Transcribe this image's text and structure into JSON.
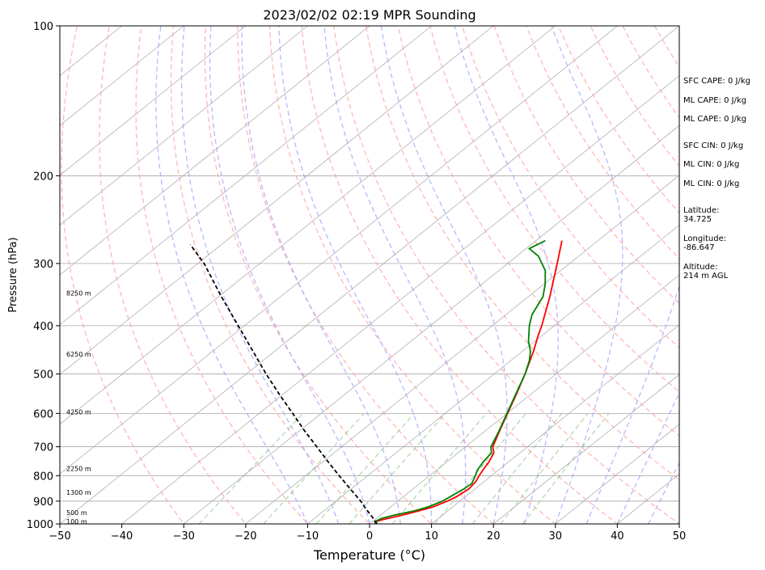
{
  "chart_data": {
    "type": "line",
    "title": "2023/02/02 02:19 MPR Sounding",
    "xlabel": "Temperature (°C)",
    "ylabel": "Pressure (hPa)",
    "xlim": [
      -50,
      50
    ],
    "ylim": [
      1000,
      100
    ],
    "y_scale": "log",
    "skew": "skew-T",
    "x_ticks": [
      "−50",
      "−40",
      "−30",
      "−20",
      "−10",
      "0",
      "10",
      "20",
      "30",
      "40",
      "50"
    ],
    "y_ticks": [
      1000,
      900,
      800,
      700,
      600,
      500,
      400,
      300,
      200,
      100
    ],
    "height_labels": [
      {
        "text": "100 m",
        "p": 993
      },
      {
        "text": "500 m",
        "p": 953
      },
      {
        "text": "1300 m",
        "p": 868
      },
      {
        "text": "2250 m",
        "p": 777
      },
      {
        "text": "4250 m",
        "p": 598
      },
      {
        "text": "6250 m",
        "p": 458
      },
      {
        "text": "8250 m",
        "p": 345
      }
    ],
    "series": [
      {
        "role": "temperature",
        "color": "#ff0000",
        "points": [
          [
            1000,
            1.2
          ],
          [
            990,
            0.5
          ],
          [
            980,
            1.3
          ],
          [
            960,
            3.5
          ],
          [
            940,
            5.5
          ],
          [
            925,
            6.8
          ],
          [
            900,
            8.0
          ],
          [
            880,
            8.6
          ],
          [
            850,
            9.0
          ],
          [
            820,
            8.6
          ],
          [
            800,
            8.0
          ],
          [
            780,
            7.5
          ],
          [
            750,
            6.8
          ],
          [
            720,
            5.8
          ],
          [
            700,
            4.4
          ],
          [
            650,
            2.3
          ],
          [
            600,
            0.1
          ],
          [
            550,
            -2.3
          ],
          [
            500,
            -5.0
          ],
          [
            450,
            -8.2
          ],
          [
            420,
            -10.5
          ],
          [
            400,
            -12.0
          ],
          [
            350,
            -16.5
          ],
          [
            300,
            -22.0
          ],
          [
            270,
            -25.8
          ]
        ]
      },
      {
        "role": "dewpoint",
        "color": "#008000",
        "points": [
          [
            1000,
            1.0
          ],
          [
            990,
            0.4
          ],
          [
            975,
            0.8
          ],
          [
            960,
            2.2
          ],
          [
            940,
            4.8
          ],
          [
            925,
            6.0
          ],
          [
            900,
            7.2
          ],
          [
            880,
            7.6
          ],
          [
            850,
            8.2
          ],
          [
            830,
            8.4
          ],
          [
            800,
            7.4
          ],
          [
            780,
            6.6
          ],
          [
            750,
            5.9
          ],
          [
            720,
            5.4
          ],
          [
            700,
            4.1
          ],
          [
            650,
            2.2
          ],
          [
            600,
            0.0
          ],
          [
            550,
            -2.4
          ],
          [
            500,
            -5.0
          ],
          [
            470,
            -7.0
          ],
          [
            450,
            -8.7
          ],
          [
            430,
            -11.0
          ],
          [
            400,
            -14.0
          ],
          [
            380,
            -15.8
          ],
          [
            350,
            -17.6
          ],
          [
            330,
            -19.8
          ],
          [
            310,
            -22.5
          ],
          [
            290,
            -26.5
          ],
          [
            280,
            -29.5
          ],
          [
            270,
            -28.5
          ]
        ]
      },
      {
        "role": "parcel",
        "color": "#000000",
        "points": [
          [
            1000,
            1.2
          ],
          [
            975,
            -0.5
          ],
          [
            950,
            -2.3
          ],
          [
            925,
            -4.2
          ],
          [
            900,
            -6.0
          ],
          [
            850,
            -10.2
          ],
          [
            800,
            -14.6
          ],
          [
            750,
            -19.2
          ],
          [
            700,
            -24.0
          ],
          [
            650,
            -29.2
          ],
          [
            600,
            -34.6
          ],
          [
            550,
            -40.5
          ],
          [
            500,
            -46.8
          ],
          [
            450,
            -53.5
          ],
          [
            400,
            -61.0
          ],
          [
            350,
            -69.5
          ],
          [
            300,
            -79.0
          ],
          [
            275,
            -85.0
          ]
        ]
      }
    ]
  },
  "stats": {
    "sfc_cape": "SFC CAPE: 0 J/kg",
    "ml_cape_1": "ML CAPE: 0 J/kg",
    "ml_cape_2": "ML CAPE: 0 J/kg",
    "sfc_cin": "SFC CIN: 0 J/kg",
    "ml_cin_1": "ML CIN: 0 J/kg",
    "ml_cin_2": "ML CIN: 0 J/kg",
    "latitude": "Latitude:\n34.725",
    "longitude": "Longitude:\n-86.647",
    "altitude": "Altitude:\n214 m AGL"
  },
  "colors": {
    "isotherm": "#b0b0b0",
    "isobar": "#a8a8a8",
    "dry_adiabat": "#ff9f9f",
    "moist_adiabat": "#9f9fff",
    "mixing_ratio": "#7fbf7f"
  }
}
